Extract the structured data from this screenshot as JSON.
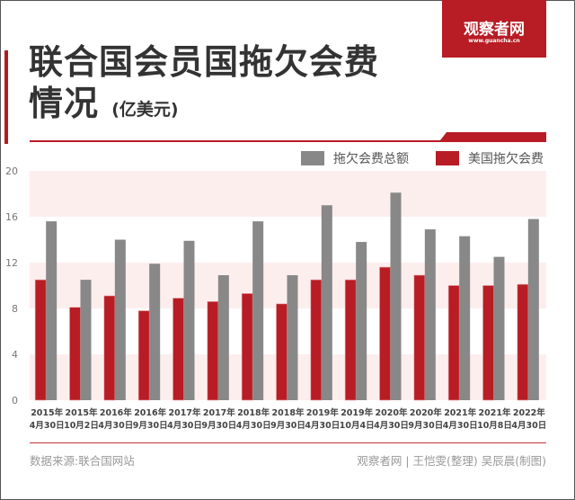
{
  "title": {
    "line1": "联合国会员国拖欠会费",
    "line2": "情况",
    "unit": "(亿美元)"
  },
  "logo": {
    "name": "观察者网",
    "url": "www.guancha.cn"
  },
  "footer": {
    "source": "数据来源:联合国网站",
    "credit": "观察者网 | 王恺雯(整理) 吴辰晨(制图)"
  },
  "colors": {
    "accent": "#b81c24",
    "gray": "#888888",
    "band": "#fdeeee"
  },
  "chart_data": {
    "type": "bar",
    "categories": [
      [
        "2015年",
        "4月30日"
      ],
      [
        "2015年",
        "10月2日"
      ],
      [
        "2016年",
        "4月30日"
      ],
      [
        "2016年",
        "9月30日"
      ],
      [
        "2017年",
        "4月30日"
      ],
      [
        "2017年",
        "9月30日"
      ],
      [
        "2018年",
        "4月30日"
      ],
      [
        "2018年",
        "9月30日"
      ],
      [
        "2019年",
        "4月30日"
      ],
      [
        "2019年",
        "10月4日"
      ],
      [
        "2020年",
        "4月30日"
      ],
      [
        "2020年",
        "9月30日"
      ],
      [
        "2021年",
        "4月30日"
      ],
      [
        "2021年",
        "10月8日"
      ],
      [
        "2022年",
        "4月30日"
      ]
    ],
    "series": [
      {
        "name": "美国拖欠会费",
        "color": "#b81c24",
        "values": [
          10.5,
          8.1,
          9.1,
          7.8,
          8.9,
          8.6,
          9.3,
          8.4,
          10.5,
          10.5,
          11.6,
          10.9,
          10.0,
          10.0,
          10.1
        ]
      },
      {
        "name": "拖欠会费总额",
        "color": "#888888",
        "values": [
          15.6,
          10.5,
          14.0,
          11.9,
          13.9,
          10.9,
          15.6,
          10.9,
          17.0,
          13.8,
          18.1,
          14.9,
          14.3,
          12.5,
          15.8
        ]
      }
    ],
    "yticks": [
      0,
      4,
      8,
      12,
      16,
      20
    ],
    "ylim": [
      0,
      20
    ],
    "grid": "alternating bands",
    "legend": "top-right"
  }
}
